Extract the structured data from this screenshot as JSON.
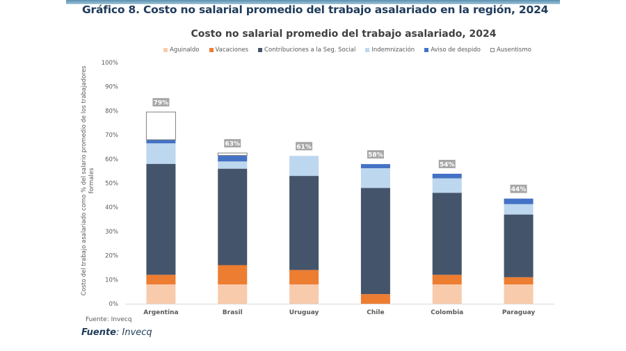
{
  "page_title": "Gráfico 8. Costo no salarial promedio del trabajo asalariado en la región, 2024",
  "footer": {
    "source_small": "Fuente: Invecq",
    "source_label": "Fuente",
    "source_value": ": Invecq"
  },
  "colors": {
    "Aguinaldo": "#f8cbad",
    "Vacaciones": "#ed7d31",
    "Contribuciones a la Seg. Social": "#44546a",
    "Indemnización": "#bdd7ee",
    "Aviso de despido": "#4472c4",
    "Ausentismo": "#ffffff",
    "label_badge": "#a6a6a6"
  },
  "chart_data": {
    "type": "bar",
    "stacked": true,
    "title": "Costo no salarial promedio del trabajo asalariado, 2024",
    "xlabel": "",
    "ylabel": "Costo del trabajo asalariado como % del salario promedio de los trabajadores formales",
    "ylim": [
      0,
      100
    ],
    "yticks": [
      "0%",
      "10%",
      "20%",
      "30%",
      "40%",
      "50%",
      "60%",
      "70%",
      "80%",
      "90%",
      "100%"
    ],
    "grid": false,
    "legend_position": "top",
    "categories": [
      "Argentina",
      "Brasil",
      "Uruguay",
      "Chile",
      "Colombia",
      "Paraguay"
    ],
    "series": [
      {
        "name": "Aguinaldo",
        "values": [
          8,
          8,
          8,
          0,
          8,
          8
        ]
      },
      {
        "name": "Vacaciones",
        "values": [
          4,
          8,
          6,
          4,
          4,
          3
        ]
      },
      {
        "name": "Contribuciones a la Seg. Social",
        "values": [
          46,
          40,
          39,
          44,
          34,
          26
        ]
      },
      {
        "name": "Indemnización",
        "values": [
          8.5,
          3,
          8.3,
          8.2,
          6,
          4.3
        ]
      },
      {
        "name": "Aviso de despido",
        "values": [
          1.5,
          2.5,
          0,
          1.7,
          1.9,
          2.3
        ]
      },
      {
        "name": "Ausentismo",
        "values": [
          11.5,
          1,
          0,
          0,
          0,
          0
        ]
      }
    ],
    "total_labels": [
      "79%",
      "63%",
      "61%",
      "58%",
      "54%",
      "44%"
    ]
  }
}
